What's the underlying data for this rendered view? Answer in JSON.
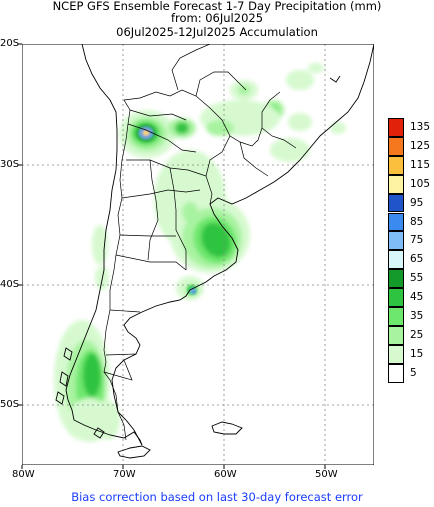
{
  "header": {
    "line1": "NCEP GFS Ensemble Forecast 1-7 Day Precipitation (mm)",
    "line2": "from: 06Jul2025",
    "line3": "06Jul2025-12Jul2025 Accumulation"
  },
  "axes": {
    "lat_labels": [
      "20S",
      "30S",
      "40S",
      "50S"
    ],
    "lon_labels": [
      "80W",
      "70W",
      "60W",
      "50W"
    ]
  },
  "legend": {
    "labels": [
      "135",
      "125",
      "115",
      "105",
      "95",
      "85",
      "75",
      "65",
      "55",
      "45",
      "35",
      "25",
      "15",
      "5"
    ],
    "colors": [
      "#e2210b",
      "#f5781e",
      "#fbbf3d",
      "#fdf3a2",
      "#1f55c8",
      "#3b8af0",
      "#7ebdf6",
      "#d8f7fb",
      "#149a2a",
      "#2ec43f",
      "#6ee76d",
      "#a8f3a0",
      "#d6f9cf",
      "#ffffff"
    ]
  },
  "footer": {
    "note": "Bias correction based on last 30-day forecast error"
  }
}
